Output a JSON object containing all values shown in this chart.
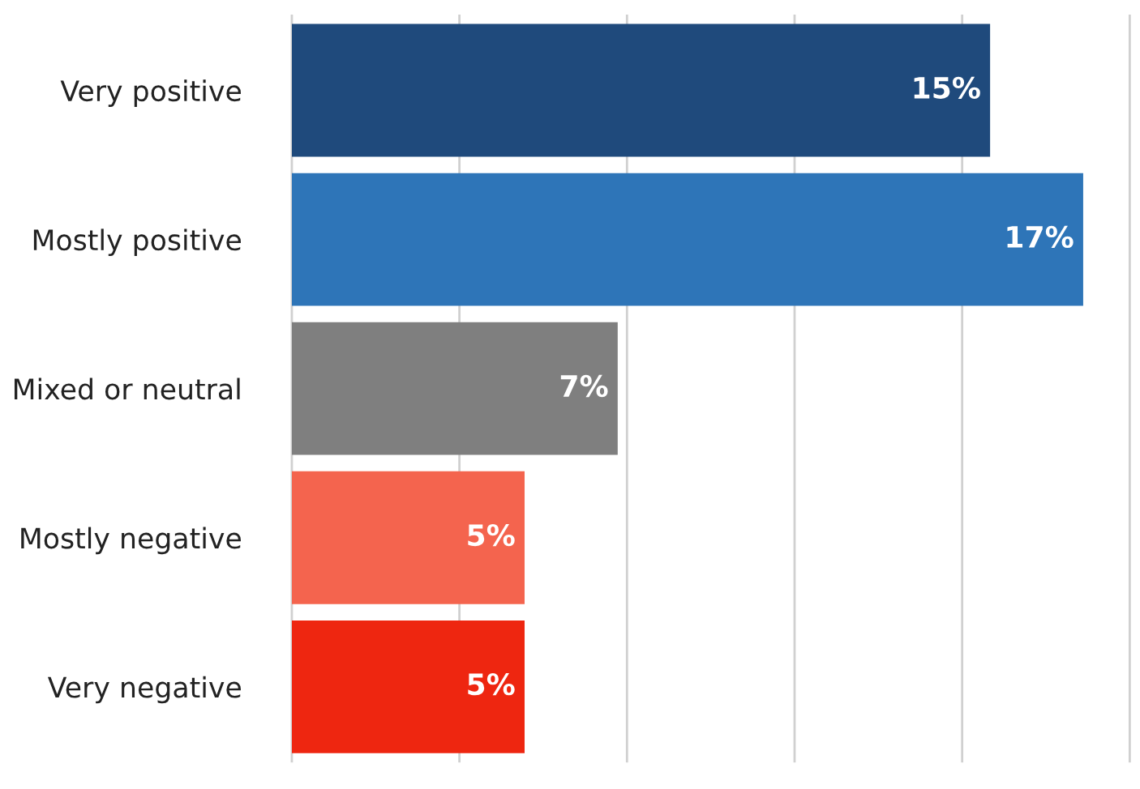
{
  "chart_data": {
    "type": "bar",
    "orientation": "horizontal",
    "categories": [
      "Very positive",
      "Mostly positive",
      "Mixed or neutral",
      "Mostly negative",
      "Very negative"
    ],
    "values": [
      15,
      17,
      7,
      5,
      5
    ],
    "value_labels": [
      "15%",
      "17%",
      "7%",
      "5%",
      "5%"
    ],
    "colors": [
      "#1f4a7c",
      "#2e75b8",
      "#7f7f7f",
      "#f4644e",
      "#ee2610"
    ],
    "xlim": [
      0,
      18
    ],
    "xticks": [
      {
        "value": 0,
        "label": null
      },
      {
        "value": 3.6,
        "label": null
      },
      {
        "value": 7.2,
        "label": null
      },
      {
        "value": 10.8,
        "label": null
      },
      {
        "value": 14.4,
        "label": null
      },
      {
        "value": 18,
        "label": null
      }
    ],
    "grid": "x",
    "legend": false
  }
}
